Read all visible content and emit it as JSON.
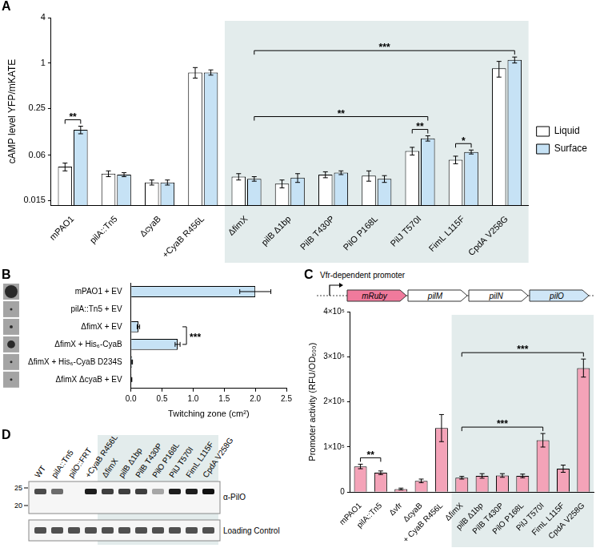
{
  "chart_data": [
    {
      "panel": "A",
      "type": "bar",
      "y_label": "cAMP level YFP/mKATE",
      "log": "y",
      "grid": false,
      "legend": "right",
      "ylim": [
        0.013,
        4
      ],
      "yticks": [
        0.015,
        0.06,
        0.25,
        1,
        4
      ],
      "categories": [
        "mPAO1",
        "pilA::Tn5",
        "ΔcyaB",
        "+CyaB R456L",
        "ΔfimX",
        "pilB Δ1bp",
        "PilB T430P",
        "PilO P168L",
        "PilJ T570I",
        "FimL L115F",
        "CpdA V258G"
      ],
      "series": [
        {
          "name": "Liquid",
          "color": "#ffffff",
          "values": [
            0.042,
            0.034,
            0.026,
            0.75,
            0.031,
            0.025,
            0.033,
            0.032,
            0.068,
            0.052,
            0.85
          ],
          "errors": [
            0.005,
            0.003,
            0.002,
            0.12,
            0.003,
            0.003,
            0.003,
            0.005,
            0.008,
            0.006,
            0.2
          ]
        },
        {
          "name": "Surface",
          "color": "#c6e2f5",
          "values": [
            0.13,
            0.033,
            0.026,
            0.75,
            0.029,
            0.03,
            0.035,
            0.029,
            0.1,
            0.066,
            1.1
          ],
          "errors": [
            0.015,
            0.002,
            0.002,
            0.06,
            0.002,
            0.004,
            0.002,
            0.003,
            0.008,
            0.004,
            0.1
          ]
        }
      ],
      "shaded_from": "ΔfimX",
      "annotations": [
        {
          "text": "**",
          "from": [
            "mPAO1",
            "Liquid"
          ],
          "to": [
            "mPAO1",
            "Surface"
          ]
        },
        {
          "text": "**",
          "from": [
            "PilJ T570I",
            "Liquid"
          ],
          "to": [
            "PilJ T570I",
            "Surface"
          ]
        },
        {
          "text": "*",
          "from": [
            "FimL L115F",
            "Liquid"
          ],
          "to": [
            "FimL L115F",
            "Surface"
          ]
        },
        {
          "text": "**",
          "from": [
            "ΔfimX",
            "Surface"
          ],
          "to": [
            "PilJ T570I",
            "Surface"
          ]
        },
        {
          "text": "***",
          "from": [
            "ΔfimX",
            "Surface"
          ],
          "to": [
            "CpdA V258G",
            "Surface"
          ]
        }
      ]
    },
    {
      "panel": "B",
      "type": "bar",
      "orientation": "horizontal",
      "x_label": "Twitching zone (cm²)",
      "grid": false,
      "xlim": [
        0,
        2.5
      ],
      "xticks": [
        {
          "value": 0,
          "label": "0.0"
        },
        {
          "value": 0.5,
          "label": "0.5"
        },
        {
          "value": 1,
          "label": "1.0"
        },
        {
          "value": 1.5,
          "label": "1.5"
        },
        {
          "value": 2,
          "label": "2.0"
        },
        {
          "value": 2.5,
          "label": "2.5"
        }
      ],
      "categories": [
        "mPAO1 + EV",
        "pilA::Tn5 + EV",
        "ΔfimX + EV",
        "ΔfimX + His₆-CyaB",
        "ΔfimX + His₆-CyaB D234S",
        "ΔfimX ΔcyaB + EV"
      ],
      "values": [
        2.0,
        0,
        0.12,
        0.75,
        0.02,
        0.01
      ],
      "errors": [
        0.25,
        0,
        0.02,
        0.04,
        0.005,
        0.005
      ],
      "color": "#c6e2f5",
      "annotations": [
        {
          "text": "***",
          "from": "ΔfimX + EV",
          "to": "ΔfimX + His₆-CyaB"
        }
      ]
    },
    {
      "panel": "C",
      "type": "bar",
      "y_label": "Promoter activity (RFU/OD₆₀₀)",
      "grid": false,
      "ylim": [
        0,
        400000
      ],
      "yticks": [
        0,
        {
          "value": 100000,
          "label": "1×10⁵"
        },
        {
          "value": 200000,
          "label": "2×10⁵"
        },
        {
          "value": 300000,
          "label": "3×10⁵"
        },
        {
          "value": 400000,
          "label": "4×10⁵"
        }
      ],
      "categories": [
        "mPAO1",
        "pilA::Tn5",
        "Δvfr",
        "ΔcyaB",
        "+ CyaB R456L",
        "ΔfimX",
        "pilB Δ1bp",
        "PilB T430P",
        "PilO P168L",
        "PilJ T570I",
        "FimL L115F",
        "CpdA V258G"
      ],
      "values": [
        57000,
        43000,
        7000,
        25000,
        142000,
        32000,
        36000,
        37000,
        36000,
        115000,
        52000,
        275000
      ],
      "errors": [
        5000,
        4000,
        2000,
        4000,
        30000,
        3000,
        5000,
        4000,
        4000,
        15000,
        8000,
        20000
      ],
      "color": "#f4a3b8",
      "shaded_from": "ΔfimX",
      "annotations": [
        {
          "text": "**",
          "from": "mPAO1",
          "to": "pilA::Tn5"
        },
        {
          "text": "***",
          "from": "ΔfimX",
          "to": "PilJ T570I"
        },
        {
          "text": "***",
          "from": "ΔfimX",
          "to": "CpdA V258G"
        }
      ]
    }
  ],
  "construct": {
    "promoter": "Vfr-dependent promoter",
    "genes": [
      "mRuby",
      "pilM",
      "pilN",
      "pilO"
    ]
  },
  "blot": {
    "panel": "D",
    "lanes": [
      "WT",
      "pilA::Tn5",
      "pilO::FRT",
      "+CyaB R456L",
      "ΔfimX",
      "pilB Δ1bp",
      "PilB T430P",
      "PilO P168L",
      "PilJ T570I",
      "FimL L115F",
      "CpdA V258G"
    ],
    "markers": [
      25,
      20
    ],
    "rows": [
      "α-PilO",
      "Loading Control"
    ],
    "band_intensity": [
      0.75,
      0.6,
      0.0,
      0.95,
      0.8,
      0.8,
      0.8,
      0.35,
      0.95,
      0.95,
      1.0
    ],
    "shaded_from": "ΔfimX"
  }
}
